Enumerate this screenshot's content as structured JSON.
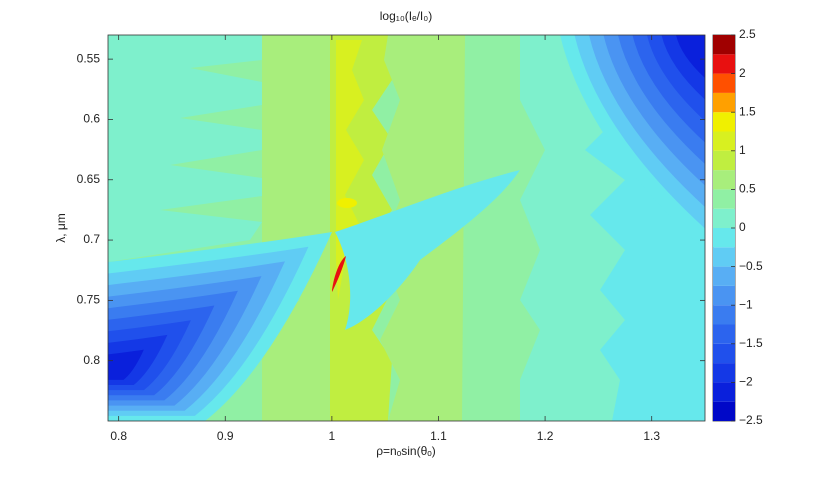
{
  "chart_data": {
    "type": "contour",
    "title": "log₁₀(Iₑ/I₀)",
    "x_label": "ρ=nₒsin(θₒ)",
    "y_label": "λ, μm",
    "xlim": [
      0.79,
      1.35
    ],
    "xticks": [
      0.8,
      0.9,
      1,
      1.1,
      1.2,
      1.3
    ],
    "ylim": [
      0.53,
      0.85
    ],
    "y_reversed": true,
    "yticks": [
      0.55,
      0.6,
      0.65,
      0.7,
      0.75,
      0.8
    ],
    "levels": [
      -2.5,
      -2.25,
      -2,
      -1.75,
      -1.5,
      -1.25,
      -1,
      -0.75,
      -0.5,
      -0.25,
      0,
      0.25,
      0.5,
      0.75,
      1,
      1.25,
      1.5,
      1.75,
      2,
      2.25,
      2.5
    ],
    "colors": [
      "#0008c8",
      "#0a20dc",
      "#1438e6",
      "#2050ec",
      "#2c64ee",
      "#3a7cf0",
      "#4a94f2",
      "#58aef4",
      "#60ccf4",
      "#66e8ec",
      "#7ef0cc",
      "#90f0a4",
      "#a8ee7c",
      "#c0ee40",
      "#d8f020",
      "#f0f000",
      "#ffa000",
      "#ff5000",
      "#e81010",
      "#a00000"
    ],
    "colorbar_ticks": [
      {
        "value": -2.5,
        "label": "−2.5"
      },
      {
        "value": -2,
        "label": "−2"
      },
      {
        "value": -1.5,
        "label": "−1.5"
      },
      {
        "value": -1,
        "label": "−1"
      },
      {
        "value": -0.5,
        "label": "−0.5"
      },
      0,
      0.5,
      1,
      1.5,
      2,
      2.5
    ]
  }
}
